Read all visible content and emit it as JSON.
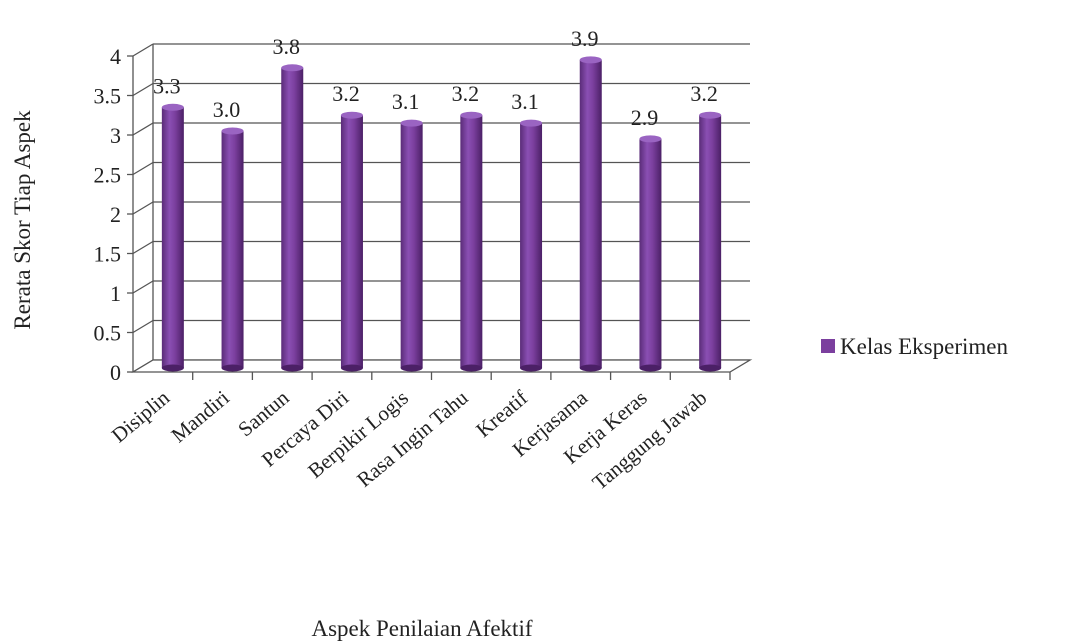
{
  "chart_data": {
    "type": "bar",
    "categories": [
      "Disiplin",
      "Mandiri",
      "Santun",
      "Percaya Diri",
      "Berpikir Logis",
      "Rasa Ingin Tahu",
      "Kreatif",
      "Kerjasama",
      "Kerja Keras",
      "Tanggung Jawab"
    ],
    "series": [
      {
        "name": "Kelas Eksperimen",
        "values": [
          3.3,
          3.0,
          3.8,
          3.2,
          3.1,
          3.2,
          3.1,
          3.9,
          2.9,
          3.2
        ],
        "labels": [
          "3.3",
          "3.0",
          "3.8",
          "3.2",
          "3.1",
          "3.2",
          "3.1",
          "3.9",
          "2.9",
          "3.2"
        ],
        "color": "#7B3F9E"
      }
    ],
    "xlabel": "Aspek Penilaian Afektif",
    "ylabel": "Rerata Skor Tiap Aspek",
    "ylim": [
      0,
      4
    ],
    "yticks": [
      "0",
      "0.5",
      "1",
      "1.5",
      "2",
      "2.5",
      "3",
      "3.5",
      "4"
    ],
    "grid": true,
    "legend": "right",
    "bar_style": "3d-cylinder"
  }
}
